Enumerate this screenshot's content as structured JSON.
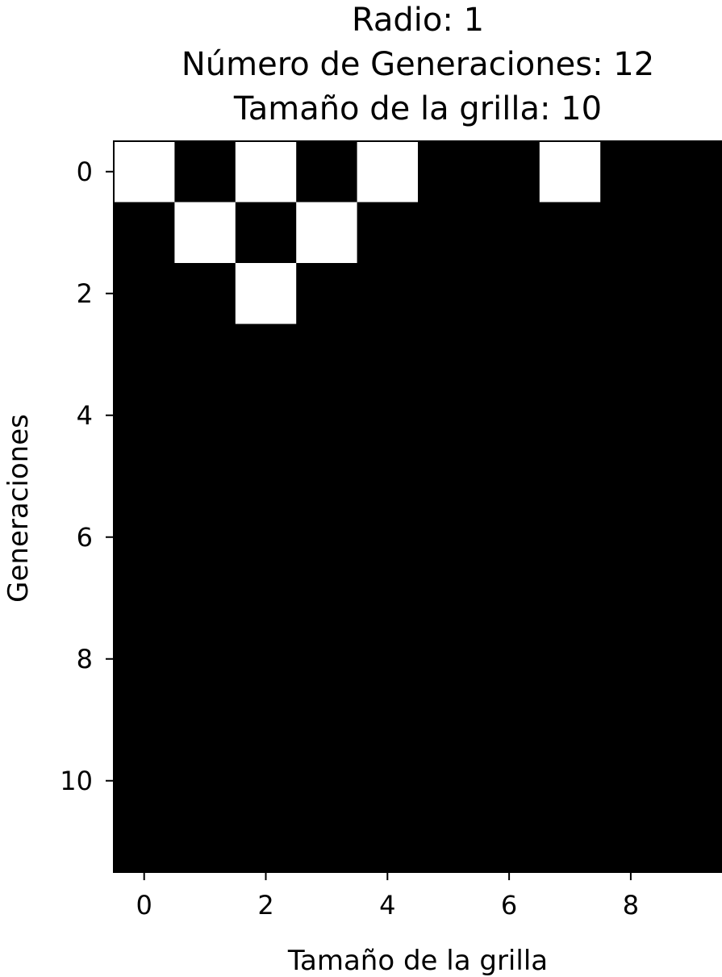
{
  "chart_data": {
    "type": "heatmap",
    "title_lines": [
      "Radio: 1",
      "Número de Generaciones: 12",
      "Tamaño de la grilla: 10"
    ],
    "xlabel": "Tamaño de la grilla",
    "ylabel": "Generaciones",
    "x_ticks": [
      0,
      2,
      4,
      6,
      8
    ],
    "y_ticks": [
      0,
      2,
      4,
      6,
      8,
      10
    ],
    "colors": {
      "on": "#ffffff",
      "off": "#000000"
    },
    "grid": [
      [
        1,
        0,
        1,
        0,
        1,
        0,
        0,
        1,
        0,
        0
      ],
      [
        0,
        1,
        0,
        1,
        0,
        0,
        0,
        0,
        0,
        0
      ],
      [
        0,
        0,
        1,
        0,
        0,
        0,
        0,
        0,
        0,
        0
      ],
      [
        0,
        0,
        0,
        0,
        0,
        0,
        0,
        0,
        0,
        0
      ],
      [
        0,
        0,
        0,
        0,
        0,
        0,
        0,
        0,
        0,
        0
      ],
      [
        0,
        0,
        0,
        0,
        0,
        0,
        0,
        0,
        0,
        0
      ],
      [
        0,
        0,
        0,
        0,
        0,
        0,
        0,
        0,
        0,
        0
      ],
      [
        0,
        0,
        0,
        0,
        0,
        0,
        0,
        0,
        0,
        0
      ],
      [
        0,
        0,
        0,
        0,
        0,
        0,
        0,
        0,
        0,
        0
      ],
      [
        0,
        0,
        0,
        0,
        0,
        0,
        0,
        0,
        0,
        0
      ],
      [
        0,
        0,
        0,
        0,
        0,
        0,
        0,
        0,
        0,
        0
      ],
      [
        0,
        0,
        0,
        0,
        0,
        0,
        0,
        0,
        0,
        0
      ]
    ]
  }
}
